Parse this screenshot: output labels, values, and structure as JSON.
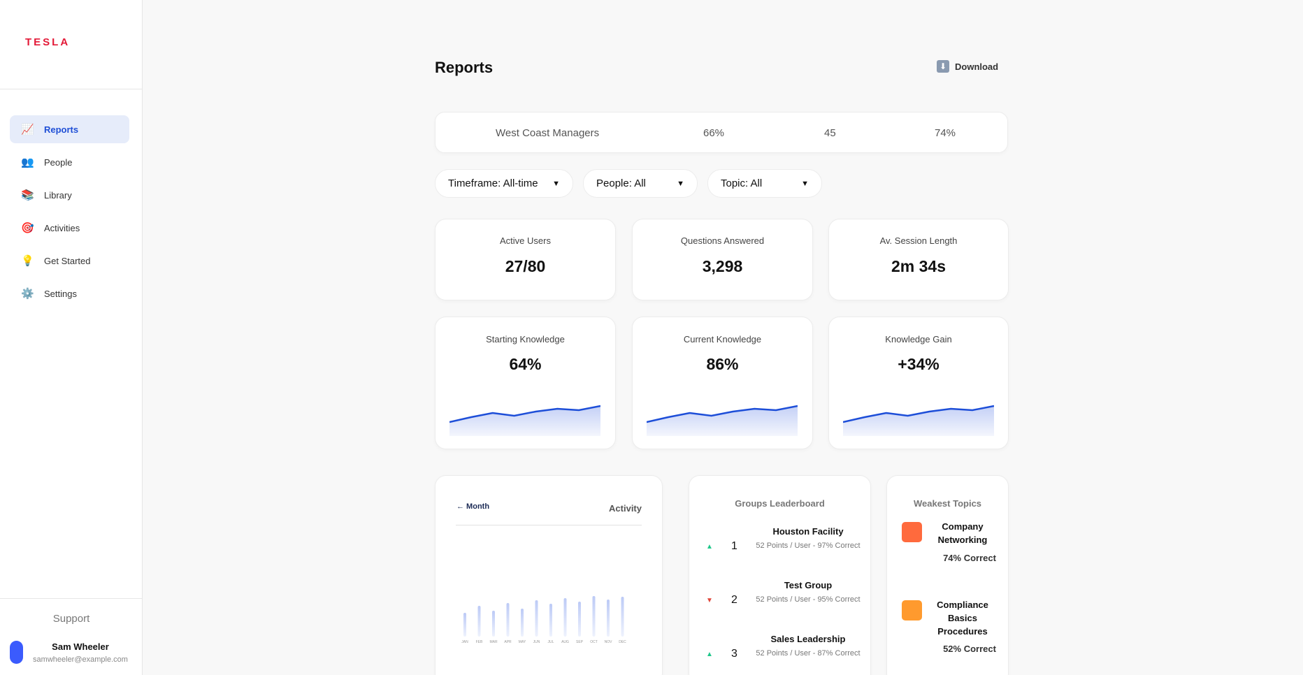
{
  "sidebar": {
    "logo": "TESLA",
    "items": [
      {
        "label": "Reports",
        "icon": "chart-icon",
        "glyph": "📈"
      },
      {
        "label": "People",
        "icon": "people-icon",
        "glyph": "👥"
      },
      {
        "label": "Library",
        "icon": "books-icon",
        "glyph": "📚"
      },
      {
        "label": "Activities",
        "icon": "target-icon",
        "glyph": "🎯"
      },
      {
        "label": "Get Started",
        "icon": "lightbulb-icon",
        "glyph": "💡"
      },
      {
        "label": "Settings",
        "icon": "gear-icon",
        "glyph": "⚙️"
      }
    ],
    "support": "Support",
    "user": {
      "name": "Sam Wheeler",
      "email": "samwheeler@example.com"
    }
  },
  "header": {
    "title": "Reports",
    "download_label": "Download",
    "download_glyph": "⬇"
  },
  "group_bar": {
    "name": "West Coast Managers",
    "stat1": "66%",
    "stat2": "45",
    "stat3": "74%"
  },
  "filters": [
    {
      "label": "Timeframe: All-time",
      "caret": "▼"
    },
    {
      "label": "People: All",
      "caret": "▼"
    },
    {
      "label": "Topic: All",
      "caret": "▼"
    }
  ],
  "stats": [
    {
      "label": "Active Users",
      "value": "27/80"
    },
    {
      "label": "Questions Answered",
      "value": "3,298"
    },
    {
      "label": "Av. Session Length",
      "value": "2m 34s"
    }
  ],
  "knowledge": [
    {
      "label": "Starting Knowledge",
      "value": "64%"
    },
    {
      "label": "Current Knowledge",
      "value": "86%"
    },
    {
      "label": "Knowledge Gain",
      "value": "+34%"
    }
  ],
  "colors": {
    "accent": "#1f4fd6",
    "spark_line": "#1d4ed8",
    "brand": "#e31937"
  },
  "activity": {
    "back_link": "← Month",
    "title": "Activity"
  },
  "leaderboard": {
    "title": "Groups Leaderboard",
    "rows": [
      {
        "trend": "up",
        "arrow": "▲",
        "rank": "1",
        "name": "Houston Facility",
        "detail": "52 Points / User - 97% Correct"
      },
      {
        "trend": "down",
        "arrow": "▼",
        "rank": "2",
        "name": "Test Group",
        "detail": "52 Points / User - 95% Correct"
      },
      {
        "trend": "up",
        "arrow": "▲",
        "rank": "3",
        "name": "Sales Leadership",
        "detail": "52 Points / User - 87% Correct"
      }
    ]
  },
  "weakest": {
    "title": "Weakest Topics",
    "items": [
      {
        "name": "Company Networking",
        "pct": "74% Correct",
        "color": "#ff6a3d"
      },
      {
        "name": "Compliance Basics Procedures",
        "pct": "52% Correct",
        "color": "#ff9a2e"
      }
    ]
  },
  "chart_data": [
    {
      "type": "area",
      "title": "Starting Knowledge",
      "x": [
        1,
        2,
        3,
        4,
        5,
        6,
        7,
        8
      ],
      "values": [
        20,
        27,
        33,
        29,
        35,
        39,
        37,
        43
      ],
      "ylim": [
        0,
        60
      ]
    },
    {
      "type": "bar",
      "title": "Activity",
      "categories": [
        "JAN",
        "FEB",
        "MAR",
        "APR",
        "MAY",
        "JUN",
        "JUL",
        "AUG",
        "SEP",
        "OCT",
        "NOV",
        "DEC"
      ],
      "values": [
        34,
        44,
        37,
        48,
        40,
        52,
        47,
        55,
        50,
        58,
        53,
        57
      ],
      "ylim": [
        0,
        100
      ]
    }
  ]
}
